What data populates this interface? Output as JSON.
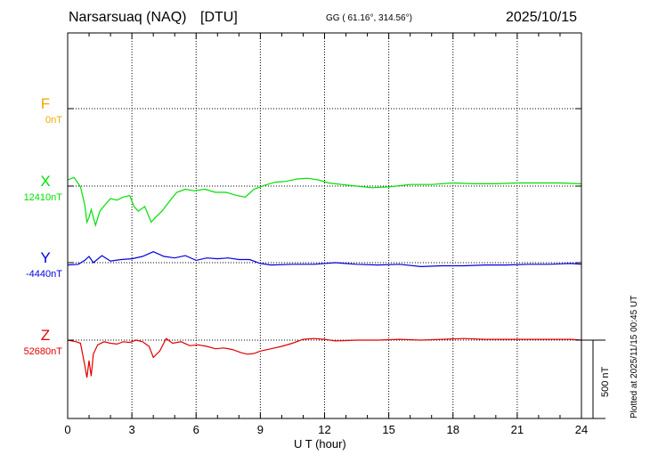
{
  "chart_data": {
    "type": "line",
    "station": "Narsarsuaq (NAQ)",
    "institute": "[DTU]",
    "coords": "GG ( 61.16°, 314.56°)",
    "date": "2025/10/15",
    "xlabel": "U T (hour)",
    "xlim": [
      0,
      24
    ],
    "xticks": [
      "0",
      "3",
      "6",
      "9",
      "12",
      "15",
      "18",
      "21",
      "24"
    ],
    "scale_label": "500 nT",
    "plotted_note": "Plotted at 2025/11/15 00:45 UT",
    "grid": true,
    "series": [
      {
        "name": "F",
        "baseline": "0nT",
        "color": "#f0a800",
        "x": [],
        "y": []
      },
      {
        "name": "X",
        "baseline": "12410nT",
        "color": "#00e000",
        "x": [
          0,
          0.3,
          0.6,
          0.8,
          0.9,
          1.0,
          1.1,
          1.3,
          1.5,
          1.8,
          2.0,
          2.3,
          2.6,
          2.9,
          3.1,
          3.3,
          3.6,
          3.9,
          4.1,
          4.4,
          4.8,
          5.1,
          5.5,
          5.9,
          6.4,
          6.9,
          7.4,
          7.9,
          8.3,
          8.7,
          9.2,
          9.7,
          10.2,
          10.7,
          11.2,
          11.7,
          12.2,
          12.8,
          13.5,
          14.2,
          15.0,
          16.0,
          17.0,
          18.0,
          19.0,
          20.0,
          21.0,
          22.0,
          23.0,
          24.0
        ],
        "y": [
          40,
          55,
          -5,
          -120,
          -230,
          -200,
          -150,
          -250,
          -160,
          -110,
          -80,
          -90,
          -70,
          -60,
          -130,
          -160,
          -130,
          -230,
          -200,
          -160,
          -90,
          -40,
          -20,
          -30,
          -20,
          -40,
          -40,
          -60,
          -70,
          -20,
          5,
          25,
          30,
          45,
          50,
          40,
          20,
          10,
          0,
          -10,
          -5,
          10,
          10,
          20,
          15,
          15,
          20,
          20,
          20,
          15
        ]
      },
      {
        "name": "Y",
        "baseline": "-4440nT",
        "color": "#0000e0",
        "x": [
          0,
          0.5,
          0.8,
          1.0,
          1.2,
          1.6,
          2.0,
          2.5,
          3.0,
          3.5,
          4.0,
          4.5,
          5.0,
          5.5,
          6.0,
          6.5,
          7.0,
          7.5,
          8.0,
          8.5,
          9.0,
          9.5,
          10.5,
          11.5,
          12.5,
          13.5,
          14.5,
          15.5,
          16.5,
          17.5,
          18.5,
          19.5,
          20.5,
          21.5,
          22.5,
          23.5,
          24.0
        ],
        "y": [
          -15,
          -10,
          15,
          40,
          0,
          45,
          10,
          20,
          25,
          40,
          70,
          40,
          30,
          45,
          15,
          30,
          25,
          30,
          20,
          20,
          -5,
          -15,
          -10,
          -10,
          0,
          -10,
          -15,
          -10,
          -25,
          -20,
          -20,
          -15,
          -15,
          -10,
          -10,
          -5,
          -10
        ]
      },
      {
        "name": "Z",
        "baseline": "52680nT",
        "color": "#e00000",
        "x": [
          0,
          0.4,
          0.6,
          0.8,
          0.9,
          1.0,
          1.1,
          1.2,
          1.4,
          1.7,
          2.0,
          2.3,
          2.6,
          2.9,
          3.2,
          3.5,
          3.8,
          4.0,
          4.3,
          4.6,
          4.9,
          5.3,
          5.7,
          6.1,
          6.5,
          6.9,
          7.3,
          7.7,
          8.1,
          8.4,
          8.7,
          9.0,
          9.5,
          10.0,
          10.5,
          11.0,
          11.5,
          12.0,
          12.5,
          13.5,
          14.5,
          15.5,
          16.5,
          17.5,
          18.5,
          19.5,
          20.5,
          21.5,
          22.5,
          23.5,
          24.0
        ],
        "y": [
          0,
          -10,
          -20,
          -160,
          -240,
          -130,
          -230,
          -90,
          -30,
          -10,
          -20,
          -25,
          -10,
          -15,
          0,
          -10,
          -40,
          -110,
          -70,
          10,
          -20,
          -10,
          -35,
          -30,
          -40,
          -55,
          -50,
          -60,
          -80,
          -90,
          -85,
          -70,
          -55,
          -40,
          -20,
          5,
          10,
          5,
          -5,
          0,
          0,
          5,
          0,
          5,
          10,
          5,
          5,
          5,
          5,
          5,
          0
        ]
      }
    ]
  }
}
